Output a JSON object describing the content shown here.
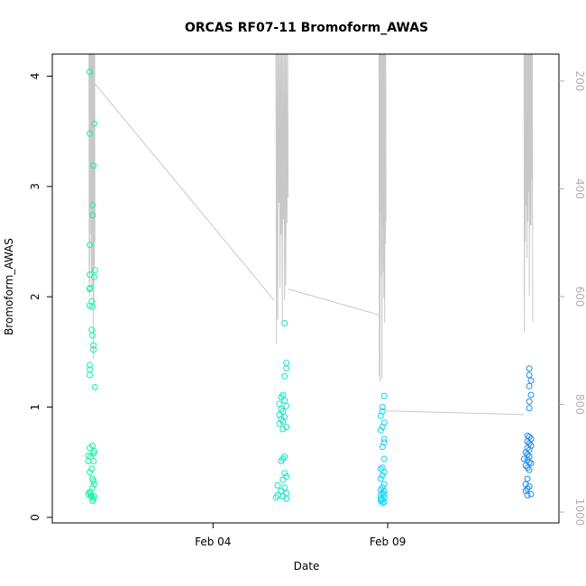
{
  "chart_data": {
    "type": "scatter",
    "title": "ORCAS RF07-11 Bromoform_AWAS",
    "xlabel": "Date",
    "ylabel": "Bromoform_AWAS",
    "x_ticks": [
      {
        "label": "Feb 04",
        "day": 4
      },
      {
        "label": "Feb 09",
        "day": 9
      }
    ],
    "xlim_day": [
      -0.6,
      13.9
    ],
    "ylim": [
      -0.05,
      4.2
    ],
    "y_ticks": [
      0,
      1,
      2,
      3,
      4
    ],
    "y2_ticks": [
      200,
      400,
      600,
      800,
      1000
    ],
    "y2lim_reversed": [
      1020,
      150
    ],
    "grid": false,
    "legend": "none",
    "colors": {
      "rf07": "#12f5a0",
      "rf08": "#12e6c8",
      "rf09": "#14d2f5",
      "rf11": "#1a8cf0",
      "pressure_line": "#c8c8c8",
      "axis": "#000000",
      "right_axis": "#b0b0b0"
    },
    "series": [
      {
        "flight": "rf07",
        "points": [
          [
            0.47,
            4.04
          ],
          [
            0.47,
            3.48
          ],
          [
            0.6,
            3.57
          ],
          [
            0.58,
            3.19
          ],
          [
            0.55,
            2.83
          ],
          [
            0.55,
            2.74
          ],
          [
            0.47,
            2.47
          ],
          [
            0.47,
            2.2
          ],
          [
            0.62,
            2.24
          ],
          [
            0.6,
            2.18
          ],
          [
            0.48,
            2.08
          ],
          [
            0.47,
            2.07
          ],
          [
            0.53,
            1.96
          ],
          [
            0.47,
            1.92
          ],
          [
            0.55,
            1.91
          ],
          [
            0.53,
            1.7
          ],
          [
            0.55,
            1.65
          ],
          [
            0.58,
            1.56
          ],
          [
            0.58,
            1.52
          ],
          [
            0.47,
            1.38
          ],
          [
            0.47,
            1.34
          ],
          [
            0.47,
            1.29
          ],
          [
            0.62,
            1.18
          ],
          [
            0.47,
            0.63
          ],
          [
            0.55,
            0.65
          ],
          [
            0.6,
            0.6
          ],
          [
            0.58,
            0.58
          ],
          [
            0.43,
            0.56
          ],
          [
            0.5,
            0.55
          ],
          [
            0.43,
            0.51
          ],
          [
            0.58,
            0.51
          ],
          [
            0.53,
            0.44
          ],
          [
            0.47,
            0.41
          ],
          [
            0.55,
            0.35
          ],
          [
            0.58,
            0.33
          ],
          [
            0.6,
            0.3
          ],
          [
            0.55,
            0.27
          ],
          [
            0.48,
            0.22
          ],
          [
            0.43,
            0.21
          ],
          [
            0.5,
            0.2
          ],
          [
            0.53,
            0.19
          ],
          [
            0.6,
            0.19
          ],
          [
            0.58,
            0.17
          ],
          [
            0.47,
            0.23
          ],
          [
            0.55,
            0.15
          ]
        ]
      },
      {
        "flight": "rf08",
        "points": [
          [
            6.05,
            1.76
          ],
          [
            6.1,
            1.4
          ],
          [
            6.1,
            1.35
          ],
          [
            6.05,
            1.28
          ],
          [
            6.0,
            1.11
          ],
          [
            5.95,
            1.09
          ],
          [
            6.05,
            1.06
          ],
          [
            5.9,
            1.03
          ],
          [
            6.1,
            1.01
          ],
          [
            5.95,
            0.98
          ],
          [
            6.0,
            0.96
          ],
          [
            5.9,
            0.93
          ],
          [
            6.05,
            0.91
          ],
          [
            5.95,
            0.89
          ],
          [
            6.0,
            0.87
          ],
          [
            5.9,
            0.85
          ],
          [
            6.1,
            0.82
          ],
          [
            6.0,
            0.8
          ],
          [
            6.05,
            0.55
          ],
          [
            6.0,
            0.53
          ],
          [
            5.95,
            0.51
          ],
          [
            6.05,
            0.4
          ],
          [
            6.1,
            0.37
          ],
          [
            6.0,
            0.34
          ],
          [
            5.85,
            0.29
          ],
          [
            6.05,
            0.27
          ],
          [
            5.95,
            0.24
          ],
          [
            6.1,
            0.22
          ],
          [
            5.85,
            0.2
          ],
          [
            5.8,
            0.18
          ],
          [
            6.0,
            0.19
          ],
          [
            6.1,
            0.17
          ]
        ]
      },
      {
        "flight": "rf09",
        "points": [
          [
            8.9,
            1.1
          ],
          [
            8.85,
            1.0
          ],
          [
            8.85,
            0.96
          ],
          [
            8.8,
            0.92
          ],
          [
            8.9,
            0.86
          ],
          [
            8.85,
            0.82
          ],
          [
            8.8,
            0.79
          ],
          [
            8.9,
            0.71
          ],
          [
            8.9,
            0.68
          ],
          [
            8.85,
            0.64
          ],
          [
            8.9,
            0.53
          ],
          [
            8.85,
            0.45
          ],
          [
            8.8,
            0.44
          ],
          [
            8.9,
            0.41
          ],
          [
            8.85,
            0.38
          ],
          [
            8.8,
            0.35
          ],
          [
            8.9,
            0.3
          ],
          [
            8.85,
            0.27
          ],
          [
            8.8,
            0.25
          ],
          [
            8.9,
            0.24
          ],
          [
            8.85,
            0.22
          ],
          [
            8.8,
            0.2
          ],
          [
            8.9,
            0.18
          ],
          [
            8.85,
            0.16
          ],
          [
            8.8,
            0.15
          ],
          [
            8.9,
            0.14
          ],
          [
            8.85,
            0.13
          ],
          [
            8.8,
            0.17
          ],
          [
            8.9,
            0.21
          ]
        ]
      },
      {
        "flight": "rf11",
        "points": [
          [
            13.05,
            1.35
          ],
          [
            13.05,
            1.29
          ],
          [
            13.1,
            1.24
          ],
          [
            13.05,
            1.19
          ],
          [
            13.1,
            1.11
          ],
          [
            13.05,
            1.05
          ],
          [
            13.05,
            0.99
          ],
          [
            13.0,
            0.74
          ],
          [
            13.05,
            0.73
          ],
          [
            13.1,
            0.71
          ],
          [
            13.0,
            0.69
          ],
          [
            13.05,
            0.67
          ],
          [
            13.1,
            0.65
          ],
          [
            13.0,
            0.63
          ],
          [
            13.05,
            0.61
          ],
          [
            12.95,
            0.59
          ],
          [
            13.0,
            0.57
          ],
          [
            13.05,
            0.55
          ],
          [
            12.9,
            0.53
          ],
          [
            13.0,
            0.52
          ],
          [
            13.05,
            0.5
          ],
          [
            13.1,
            0.49
          ],
          [
            12.95,
            0.47
          ],
          [
            13.0,
            0.45
          ],
          [
            13.05,
            0.43
          ],
          [
            13.0,
            0.35
          ],
          [
            12.95,
            0.3
          ],
          [
            13.05,
            0.28
          ],
          [
            13.0,
            0.26
          ],
          [
            12.95,
            0.24
          ],
          [
            13.1,
            0.21
          ],
          [
            13.0,
            0.2
          ]
        ]
      }
    ],
    "pressure_profiles": [
      {
        "flight": "rf07",
        "day_range": [
          0.45,
          0.62
        ],
        "min_pressure": 150,
        "max_pressure": 760
      },
      {
        "flight": "rf08",
        "day_range": [
          5.8,
          6.15
        ],
        "min_pressure": 150,
        "max_pressure": 770
      },
      {
        "flight": "rf09",
        "day_range": [
          8.75,
          8.95
        ],
        "min_pressure": 150,
        "max_pressure": 770
      },
      {
        "flight": "rf11",
        "day_range": [
          12.9,
          13.15
        ],
        "min_pressure": 150,
        "max_pressure": 670
      }
    ],
    "pressure_transits": [
      [
        [
          0.62,
          205
        ],
        [
          5.75,
          607
        ]
      ],
      [
        [
          6.15,
          586
        ],
        [
          8.75,
          634
        ]
      ],
      [
        [
          8.95,
          812
        ],
        [
          12.9,
          819
        ]
      ]
    ]
  }
}
